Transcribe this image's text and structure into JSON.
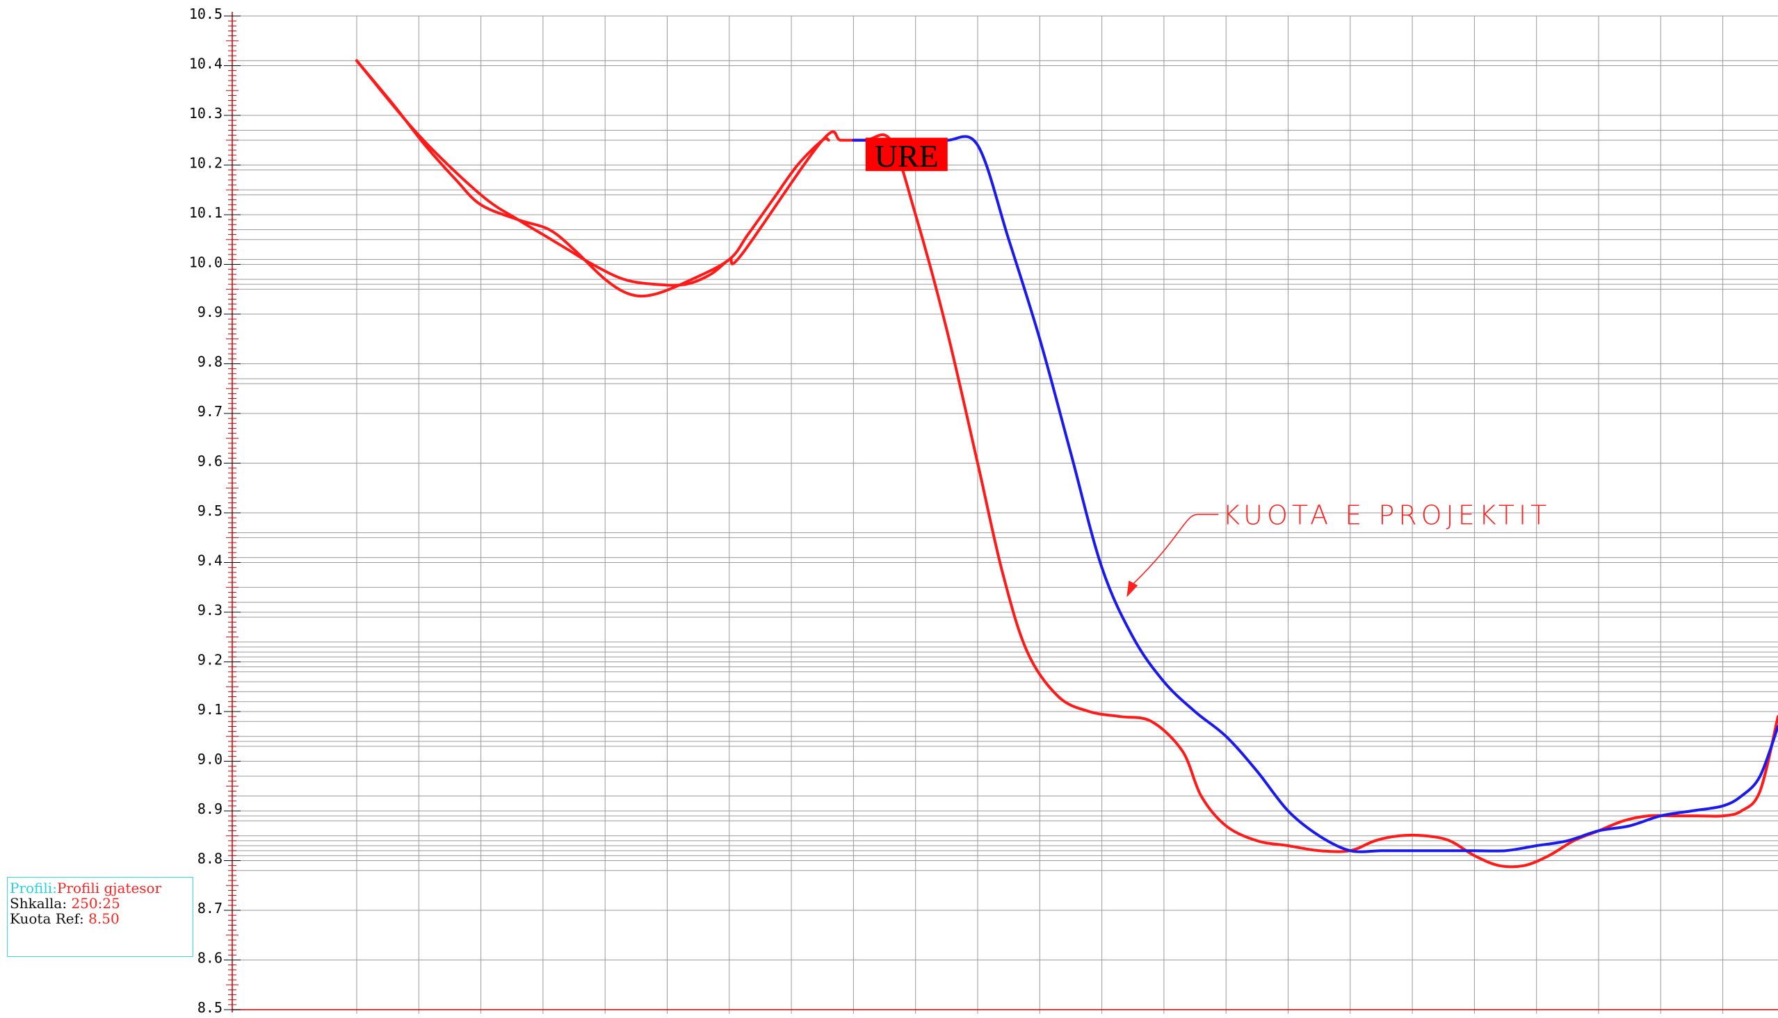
{
  "chart_data": {
    "type": "line",
    "ylim": [
      8.5,
      10.5
    ],
    "y_ticks": [
      "8.5",
      "8.6",
      "8.7",
      "8.8",
      "8.9",
      "9.0",
      "9.1",
      "9.2",
      "9.3",
      "9.4",
      "9.5",
      "9.6",
      "9.7",
      "9.8",
      "9.9",
      "10.0",
      "10.1",
      "10.2",
      "10.3",
      "10.4",
      "10.5"
    ],
    "x_range": [
      0,
      25
    ],
    "vertical_grid_stations": [
      2,
      3,
      4,
      5,
      6,
      7,
      8,
      9,
      10,
      11,
      12,
      13,
      14,
      15,
      16,
      17,
      18,
      19,
      20,
      21,
      22,
      23,
      24,
      25
    ],
    "horizontal_reference_levels": [
      10.41,
      10.27,
      10.25,
      10.19,
      10.15,
      10.14,
      10.1,
      10.07,
      10.05,
      10.01,
      9.97,
      9.96,
      9.95,
      9.77,
      9.76,
      9.5,
      9.46,
      9.45,
      9.41,
      9.35,
      9.32,
      9.3,
      9.29,
      9.24,
      9.23,
      9.22,
      9.21,
      9.2,
      9.19,
      9.18,
      9.16,
      9.14,
      9.12,
      9.1,
      9.08,
      9.05,
      9.04,
      9.03,
      8.97,
      8.93,
      8.9,
      8.89,
      8.88,
      8.85,
      8.84,
      8.83,
      8.82,
      8.81,
      8.78
    ],
    "grid": true,
    "series": [
      {
        "color": "#ff1a1a",
        "x": [
          2.0,
          3.0,
          4.0,
          4.6,
          5.0,
          5.4,
          5.8,
          6.3,
          6.8,
          7.3,
          7.7,
          8.0,
          8.2,
          9.5,
          9.8,
          10.2,
          10.6,
          11.0,
          11.5,
          12.0,
          12.4,
          12.8,
          13.3,
          13.8,
          14.3,
          14.8,
          15.3,
          15.6,
          16.0,
          16.5,
          17.0,
          17.5,
          18.0,
          18.4,
          18.8,
          19.2,
          19.6,
          20.0,
          20.4,
          20.8,
          21.2,
          21.6,
          22.0,
          22.4,
          22.8,
          23.2,
          23.6,
          24.0,
          24.3,
          24.6,
          25.0
        ],
        "y": [
          10.41,
          10.26,
          10.14,
          10.09,
          10.06,
          10.03,
          10.0,
          9.97,
          9.96,
          9.96,
          9.98,
          10.01,
          10.02,
          10.25,
          10.25,
          10.25,
          10.25,
          10.1,
          9.87,
          9.6,
          9.38,
          9.22,
          9.13,
          9.1,
          9.09,
          9.08,
          9.02,
          8.93,
          8.87,
          8.84,
          8.83,
          8.82,
          8.82,
          8.84,
          8.85,
          8.85,
          8.84,
          8.81,
          8.79,
          8.79,
          8.81,
          8.84,
          8.86,
          8.88,
          8.89,
          8.89,
          8.89,
          8.89,
          8.9,
          8.94,
          9.09
        ]
      },
      {
        "color": "#ff1a1a",
        "x": [
          2.0,
          2.6,
          3.1,
          3.6,
          4.0,
          4.6,
          5.1,
          5.5,
          6.0,
          6.4,
          6.8,
          7.4,
          8.0,
          8.3,
          8.7,
          9.1,
          9.5,
          9.6
        ],
        "y": [
          10.41,
          10.32,
          10.24,
          10.17,
          10.12,
          10.09,
          10.07,
          10.03,
          9.97,
          9.94,
          9.94,
          9.97,
          10.01,
          10.06,
          10.13,
          10.2,
          10.25,
          10.25
        ]
      },
      {
        "color": "#1a1aee",
        "x": [
          10.0,
          10.2,
          10.5,
          11.0,
          11.5,
          12.0,
          12.5,
          13.0,
          13.5,
          14.0,
          14.5,
          15.0,
          15.5,
          16.0,
          16.5,
          17.0,
          17.5,
          18.0,
          18.5,
          19.0,
          19.5,
          20.0,
          20.5,
          21.0,
          21.5,
          22.0,
          22.5,
          23.0,
          23.5,
          24.0,
          24.3,
          24.6,
          25.0
        ],
        "y": [
          10.25,
          10.25,
          10.25,
          10.25,
          10.25,
          10.24,
          10.05,
          9.85,
          9.62,
          9.39,
          9.25,
          9.16,
          9.1,
          9.05,
          8.98,
          8.9,
          8.85,
          8.82,
          8.82,
          8.82,
          8.82,
          8.82,
          8.82,
          8.83,
          8.84,
          8.86,
          8.87,
          8.89,
          8.9,
          8.91,
          8.93,
          8.97,
          9.07
        ]
      }
    ],
    "annotations": [
      {
        "text": "URE",
        "x": 10.9,
        "y": 10.22,
        "background": "#ff0000"
      },
      {
        "text": "KUOTA E PROJEKTIT",
        "x": 15.9,
        "y": 9.48,
        "arrow_to": [
          14.4,
          9.33
        ],
        "color": "#ff2020"
      }
    ]
  },
  "info_box": {
    "profile_prefix": "Profili:",
    "profile_value": "Profili gjatesor",
    "scale_label": "Shkalla:",
    "scale_value": "250:25",
    "ref_label": "Kuota Ref:",
    "ref_value": "8.50"
  },
  "colors": {
    "grid": "#9a9a9a",
    "axis": "#cc0000",
    "terrain_red": "#ff1a1a",
    "project_blue": "#1a1aee",
    "info_cyan": "#22d4e0"
  }
}
